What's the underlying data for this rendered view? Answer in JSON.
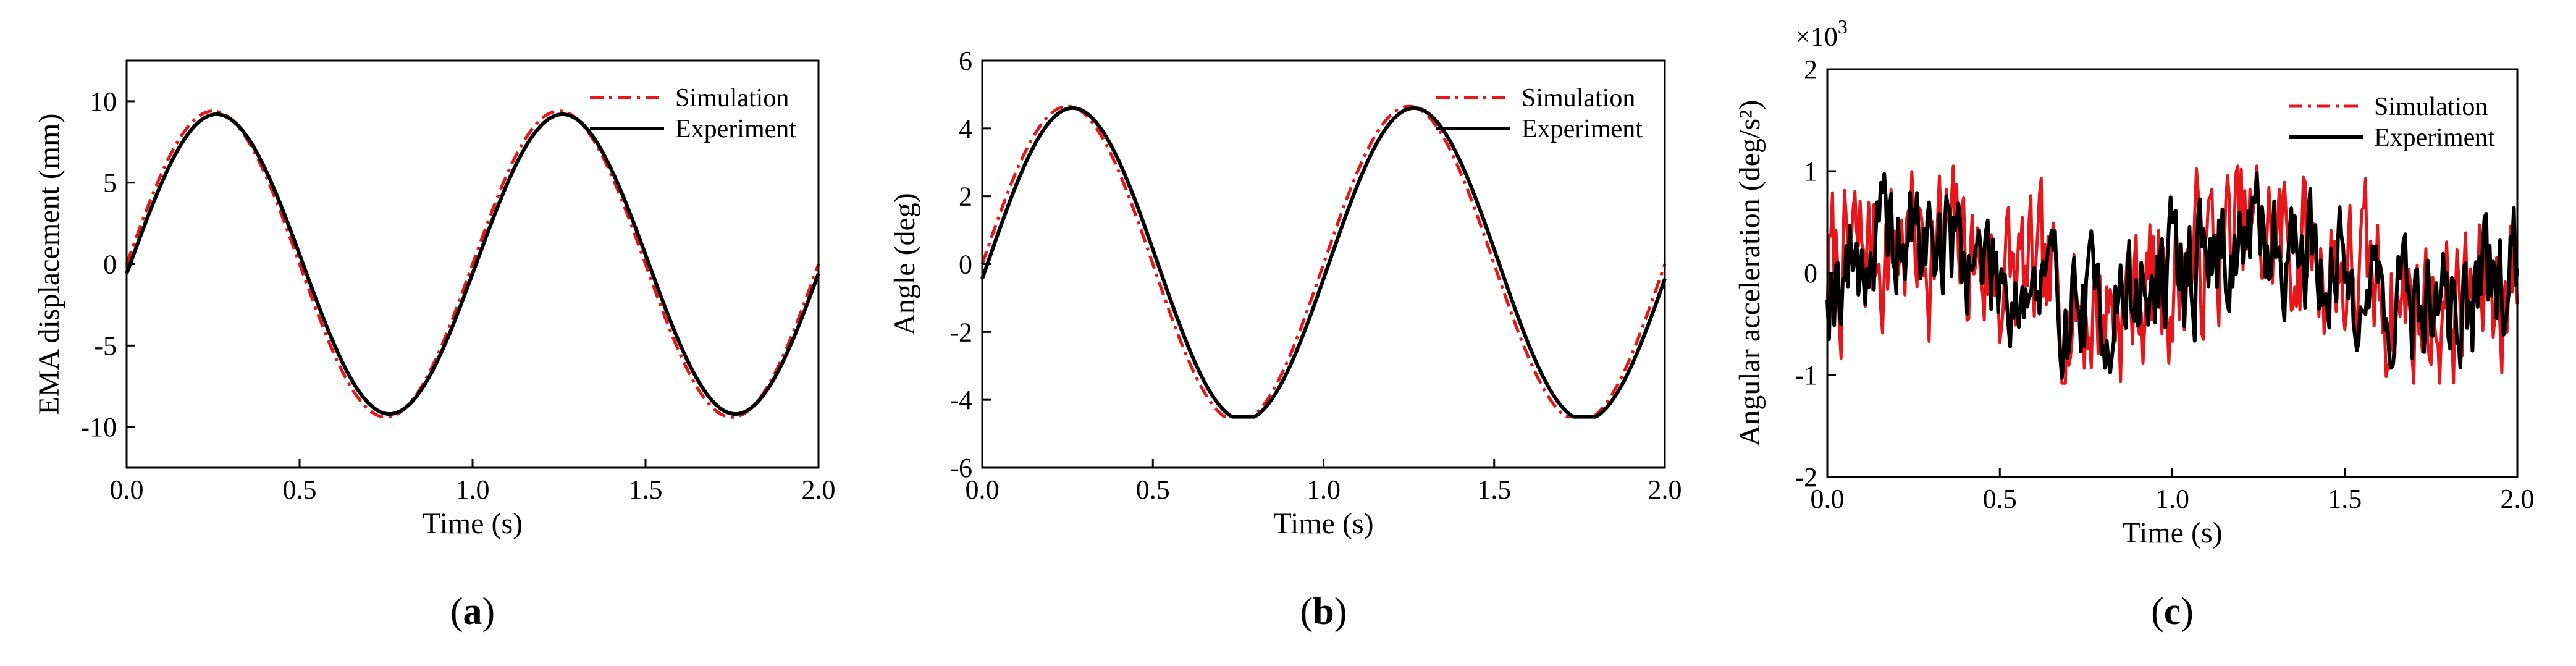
{
  "colors": {
    "simulation": "#e8161a",
    "experiment": "#000000"
  },
  "chart_data": [
    {
      "type": "line",
      "panel": "a",
      "panel_label_open": "(",
      "panel_label_close": ")",
      "xlabel": "Time (s)",
      "ylabel": "EMA displacement (mm)",
      "xlim": [
        0,
        2
      ],
      "ylim": [
        -12.5,
        12.5
      ],
      "xticks": [
        0,
        0.5,
        1,
        1.5,
        2
      ],
      "xtick_labels": [
        "0.0",
        "0.5",
        "1.0",
        "1.5",
        "2.0"
      ],
      "yticks": [
        -10,
        -5,
        0,
        5,
        10
      ],
      "ytick_labels": [
        "-10",
        "-5",
        "0",
        "5",
        "10"
      ],
      "legend": [
        "Simulation",
        "Experiment"
      ],
      "legend_position": "top-right",
      "series": [
        {
          "name": "Simulation",
          "style": "dash-dot",
          "model": "sine",
          "amplitude": 9.4,
          "period": 1.0,
          "phase": 0.0,
          "flat_bottom": 0.0
        },
        {
          "name": "Experiment",
          "style": "solid",
          "model": "sine",
          "amplitude": 9.2,
          "period": 1.0,
          "phase": 0.01,
          "flat_bottom": 0.0
        }
      ]
    },
    {
      "type": "line",
      "panel": "b",
      "panel_label_open": "(",
      "panel_label_close": ")",
      "xlabel": "Time (s)",
      "ylabel": "Angle (deg)",
      "xlim": [
        0,
        2
      ],
      "ylim": [
        -6,
        6
      ],
      "xticks": [
        0,
        0.5,
        1,
        1.5,
        2
      ],
      "xtick_labels": [
        "0.0",
        "0.5",
        "1.0",
        "1.5",
        "2.0"
      ],
      "yticks": [
        -6,
        -4,
        -2,
        0,
        2,
        4,
        6
      ],
      "ytick_labels": [
        "-6",
        "-4",
        "-2",
        "0",
        "2",
        "4",
        "6"
      ],
      "legend": [
        "Simulation",
        "Experiment"
      ],
      "legend_position": "top-right",
      "series": [
        {
          "name": "Simulation",
          "style": "dash-dot",
          "model": "sine",
          "amplitude": 4.65,
          "period": 1.0,
          "phase": 0.0,
          "flat_bottom": 4.5
        },
        {
          "name": "Experiment",
          "style": "solid",
          "model": "sine",
          "amplitude": 4.6,
          "period": 1.0,
          "phase": 0.015,
          "flat_bottom": 4.5
        }
      ]
    },
    {
      "type": "line",
      "panel": "c",
      "panel_label_open": "(",
      "panel_label_close": ")",
      "xlabel": "Time (s)",
      "ylabel": "Angular acceleration (deg/s²)",
      "y_multiplier_base": "×10",
      "y_multiplier_exp": "3",
      "xlim": [
        0,
        2
      ],
      "ylim": [
        -2,
        2
      ],
      "xticks": [
        0,
        0.5,
        1,
        1.5,
        2
      ],
      "xtick_labels": [
        "0.0",
        "0.5",
        "1.0",
        "1.5",
        "2.0"
      ],
      "yticks": [
        -2,
        -1,
        0,
        1,
        2
      ],
      "ytick_labels": [
        "-2",
        "-1",
        "0",
        "1",
        "2"
      ],
      "legend": [
        "Simulation",
        "Experiment"
      ],
      "legend_position": "top-right",
      "series": [
        {
          "name": "Simulation",
          "style": "dash-dot",
          "model": "noise",
          "samples": 400,
          "seed": 7,
          "spread": 0.42,
          "min": -1.08,
          "max": 1.05
        },
        {
          "name": "Experiment",
          "style": "solid",
          "model": "noise",
          "samples": 400,
          "seed": 19,
          "spread": 0.32,
          "min": -1.07,
          "max": 0.98
        }
      ]
    }
  ]
}
